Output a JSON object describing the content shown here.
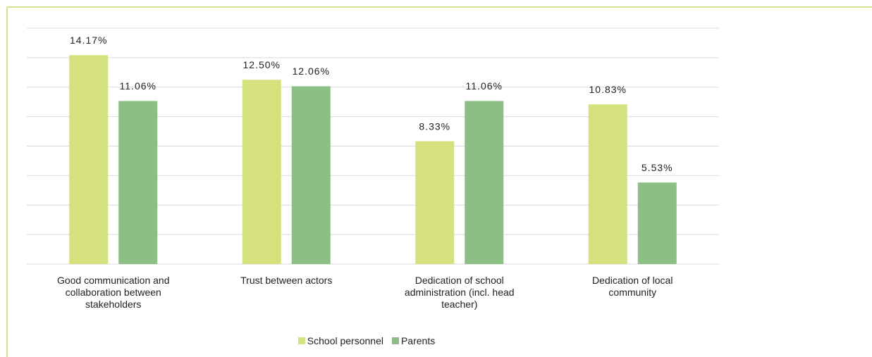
{
  "chart_data": {
    "type": "bar",
    "categories": [
      "Good communication and collaboration between stakeholders",
      "Trust between actors",
      "Dedication of school administration (incl. head teacher)",
      "Dedication of local community"
    ],
    "series": [
      {
        "name": "School personnel",
        "color": "#d4e17c",
        "values": [
          14.17,
          12.5,
          8.33,
          10.83
        ],
        "value_labels": [
          "14.17%",
          "12.50%",
          "8.33%",
          "10.83%"
        ]
      },
      {
        "name": "Parents",
        "color": "#8bbf84",
        "values": [
          11.06,
          12.06,
          11.06,
          5.53
        ],
        "value_labels": [
          "11.06%",
          "12.06%",
          "11.06%",
          "5.53%"
        ]
      }
    ],
    "ylim": [
      0,
      16
    ],
    "yticks": [
      0,
      2,
      4,
      6,
      8,
      10,
      12,
      14,
      16
    ],
    "grid": true
  }
}
